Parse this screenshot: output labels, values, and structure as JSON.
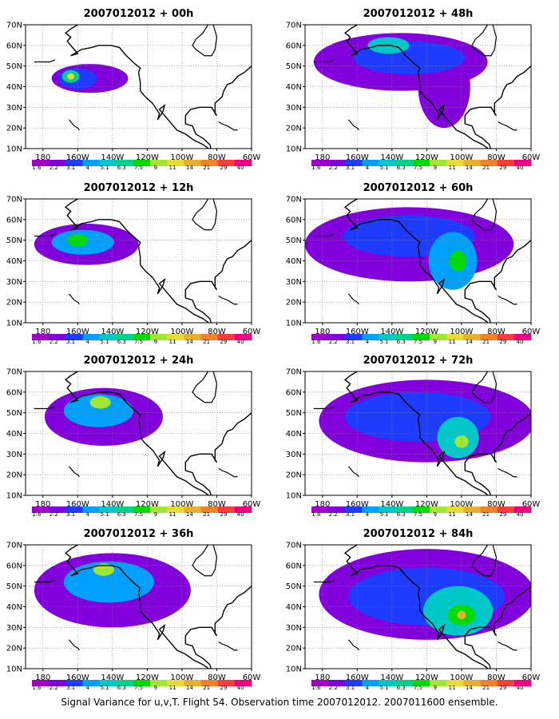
{
  "caption": "Signal Variance for u,v,T. Flight 54. Observation time 2007012012. 2007011600 ensemble.",
  "colorbar": {
    "labels": [
      "1.6",
      "2.2",
      "3.1",
      "4",
      "5.1",
      "6.3",
      "7.5",
      "9",
      "11",
      "14",
      "21",
      "29",
      "40"
    ],
    "colors": [
      "#a000c8",
      "#8200dc",
      "#1e3cff",
      "#00a0ff",
      "#00c8c8",
      "#00d28c",
      "#00dc00",
      "#a0e632",
      "#e6dc32",
      "#e6af2d",
      "#f08228",
      "#fa3c3c",
      "#f00082"
    ]
  },
  "axes": {
    "lat_labels": [
      "70N",
      "60N",
      "50N",
      "40N",
      "30N",
      "20N",
      "10N"
    ],
    "lon_labels": [
      "180",
      "160W",
      "140W",
      "120W",
      "100W",
      "80W",
      "60W"
    ]
  },
  "panels": [
    {
      "title": "2007012012 + 00h",
      "blobs": [
        {
          "lon": 207,
          "lat": 44,
          "rx": 22,
          "ry": 7,
          "level": 1
        },
        {
          "lon": 200,
          "lat": 44,
          "rx": 11,
          "ry": 5,
          "level": 2
        },
        {
          "lon": 196,
          "lat": 45,
          "rx": 5,
          "ry": 3,
          "level": 5
        },
        {
          "lon": 196,
          "lat": 45,
          "rx": 2,
          "ry": 1.5,
          "level": 8
        }
      ]
    },
    {
      "title": "2007012012 + 48h",
      "blobs": [
        {
          "lon": 225,
          "lat": 52,
          "rx": 50,
          "ry": 14,
          "level": 1
        },
        {
          "lon": 250,
          "lat": 40,
          "rx": 15,
          "ry": 20,
          "level": 1
        },
        {
          "lon": 230,
          "lat": 54,
          "rx": 32,
          "ry": 8,
          "level": 2
        },
        {
          "lon": 218,
          "lat": 60,
          "rx": 12,
          "ry": 4,
          "level": 4
        }
      ]
    },
    {
      "title": "2007012012 + 12h",
      "blobs": [
        {
          "lon": 205,
          "lat": 48,
          "rx": 30,
          "ry": 10,
          "level": 1
        },
        {
          "lon": 203,
          "lat": 49,
          "rx": 18,
          "ry": 6,
          "level": 3
        },
        {
          "lon": 200,
          "lat": 50,
          "rx": 6,
          "ry": 3,
          "level": 6
        }
      ]
    },
    {
      "title": "2007012012 + 60h",
      "blobs": [
        {
          "lon": 230,
          "lat": 48,
          "rx": 60,
          "ry": 18,
          "level": 1
        },
        {
          "lon": 230,
          "lat": 52,
          "rx": 38,
          "ry": 10,
          "level": 2
        },
        {
          "lon": 255,
          "lat": 40,
          "rx": 14,
          "ry": 14,
          "level": 3
        },
        {
          "lon": 258,
          "lat": 40,
          "rx": 5,
          "ry": 5,
          "level": 6
        }
      ]
    },
    {
      "title": "2007012012 + 24h",
      "blobs": [
        {
          "lon": 215,
          "lat": 48,
          "rx": 34,
          "ry": 14,
          "level": 1
        },
        {
          "lon": 212,
          "lat": 51,
          "rx": 20,
          "ry": 8,
          "level": 3
        },
        {
          "lon": 213,
          "lat": 55,
          "rx": 6,
          "ry": 3,
          "level": 7
        }
      ]
    },
    {
      "title": "2007012012 + 72h",
      "blobs": [
        {
          "lon": 240,
          "lat": 46,
          "rx": 62,
          "ry": 20,
          "level": 1
        },
        {
          "lon": 235,
          "lat": 48,
          "rx": 42,
          "ry": 12,
          "level": 2
        },
        {
          "lon": 258,
          "lat": 38,
          "rx": 12,
          "ry": 10,
          "level": 4
        },
        {
          "lon": 260,
          "lat": 36,
          "rx": 4,
          "ry": 3,
          "level": 7
        }
      ]
    },
    {
      "title": "2007012012 + 36h",
      "blobs": [
        {
          "lon": 220,
          "lat": 48,
          "rx": 45,
          "ry": 18,
          "level": 1
        },
        {
          "lon": 218,
          "lat": 52,
          "rx": 26,
          "ry": 10,
          "level": 3
        },
        {
          "lon": 215,
          "lat": 58,
          "rx": 6,
          "ry": 3,
          "level": 7
        }
      ]
    },
    {
      "title": "2007012012 + 84h",
      "blobs": [
        {
          "lon": 240,
          "lat": 46,
          "rx": 62,
          "ry": 22,
          "level": 1
        },
        {
          "lon": 240,
          "lat": 45,
          "rx": 45,
          "ry": 14,
          "level": 2
        },
        {
          "lon": 258,
          "lat": 38,
          "rx": 20,
          "ry": 12,
          "level": 4
        },
        {
          "lon": 260,
          "lat": 36,
          "rx": 8,
          "ry": 5,
          "level": 6
        },
        {
          "lon": 260,
          "lat": 36,
          "rx": 2.5,
          "ry": 2,
          "level": 9
        }
      ]
    }
  ]
}
